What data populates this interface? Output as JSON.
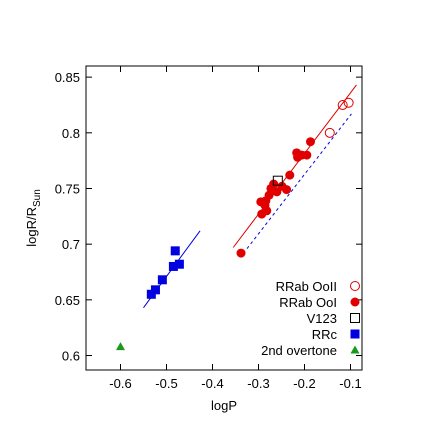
{
  "chart_data": {
    "type": "scatter",
    "xlabel": "logP",
    "ylabel": "logR/R",
    "ylabel_sub": "Sun",
    "xlim": [
      -0.675,
      -0.075
    ],
    "ylim": [
      0.587,
      0.86
    ],
    "xticks": [
      -0.6,
      -0.5,
      -0.4,
      -0.3,
      -0.2,
      -0.1
    ],
    "yticks": [
      0.6,
      0.65,
      0.7,
      0.75,
      0.8,
      0.85
    ],
    "legend": "lower right",
    "series": [
      {
        "name": "RRab OoII",
        "color": "#e00000",
        "marker": "open-circle",
        "x": [
          -0.145,
          -0.117,
          -0.104
        ],
        "values": [
          0.8,
          0.825,
          0.827
        ]
      },
      {
        "name": "RRab OoI",
        "color": "#e00000",
        "marker": "circle",
        "x": [
          -0.338,
          -0.295,
          -0.293,
          -0.282,
          -0.284,
          -0.277,
          -0.273,
          -0.267,
          -0.26,
          -0.249,
          -0.239,
          -0.232,
          -0.217,
          -0.215,
          -0.206,
          -0.195,
          -0.187,
          -0.286
        ],
        "values": [
          0.692,
          0.738,
          0.727,
          0.73,
          0.739,
          0.744,
          0.75,
          0.754,
          0.747,
          0.752,
          0.749,
          0.762,
          0.782,
          0.778,
          0.78,
          0.78,
          0.792,
          0.735
        ]
      },
      {
        "name": "V123",
        "color": "#000000",
        "marker": "open-square",
        "x": [
          -0.258
        ],
        "values": [
          0.757
        ]
      },
      {
        "name": "RRc",
        "color": "#0000e0",
        "marker": "square",
        "x": [
          -0.533,
          -0.524,
          -0.509,
          -0.481,
          -0.485,
          -0.472
        ],
        "values": [
          0.655,
          0.659,
          0.668,
          0.694,
          0.68,
          0.682
        ]
      },
      {
        "name": "2nd overtone",
        "color": "#1a9a1a",
        "marker": "triangle",
        "x": [
          -0.6
        ],
        "values": [
          0.608
        ]
      }
    ],
    "lines": [
      {
        "color": "#e00000",
        "dash": false,
        "x": [
          -0.355,
          -0.087
        ],
        "values": [
          0.697,
          0.843
        ]
      },
      {
        "color": "#0000e0",
        "dash": true,
        "x": [
          -0.325,
          -0.098
        ],
        "values": [
          0.696,
          0.817
        ]
      },
      {
        "color": "#0000e0",
        "dash": false,
        "x": [
          -0.55,
          -0.427
        ],
        "values": [
          0.643,
          0.712
        ]
      }
    ]
  }
}
